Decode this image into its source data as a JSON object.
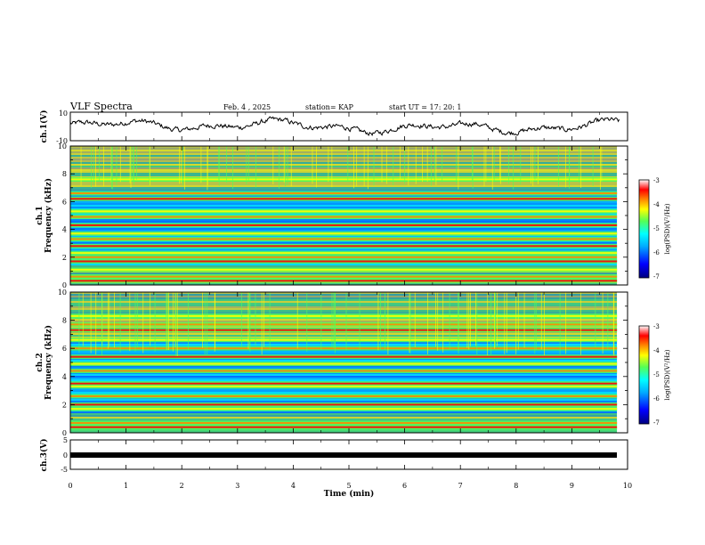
{
  "header": {
    "title": "VLF Spectra",
    "date": "Feb. 4 , 2025",
    "station": "station= KAP",
    "start": "start  UT =   17: 20: 1"
  },
  "chart_data": [
    {
      "type": "line",
      "name": "ch1-waveform",
      "ylabel": "ch.1(V)",
      "ylim": [
        -10,
        10
      ],
      "yticks": [
        "10",
        "-10"
      ],
      "xlim": [
        0,
        10
      ],
      "data_extent_min": 9.85,
      "note_shape": "noisy waveform oscillating between about -6 and 8 V"
    },
    {
      "type": "heatmap",
      "name": "ch1-spectrogram",
      "ylabel_line1": "ch.1",
      "ylabel_line2": "Frequency (kHz)",
      "ylim": [
        0,
        10
      ],
      "yticks": [
        "0",
        "2",
        "4",
        "6",
        "8",
        "10"
      ],
      "xlim": [
        0,
        10
      ],
      "colorbar": {
        "label": "log(PSD)(V²/Hz)",
        "range": [
          -7,
          -3
        ],
        "ticks": [
          "-3",
          "-4",
          "-5",
          "-6",
          "-7"
        ]
      },
      "bands_khz": [
        0.3,
        0.6,
        1.1,
        1.7,
        2.0,
        2.3,
        2.8,
        3.3,
        3.7,
        4.3,
        4.9,
        5.3,
        6.2,
        6.6,
        7.6
      ]
    },
    {
      "type": "heatmap",
      "name": "ch2-spectrogram",
      "ylabel_line1": "ch.2",
      "ylabel_line2": "Frequency (kHz)",
      "ylim": [
        0,
        10
      ],
      "yticks": [
        "0",
        "2",
        "4",
        "6",
        "8",
        "10"
      ],
      "xlim": [
        0,
        10
      ],
      "colorbar": {
        "label": "log(PSD)(V²/Hz)",
        "range": [
          -7,
          -3
        ],
        "ticks": [
          "-3",
          "-4",
          "-5",
          "-6",
          "-7"
        ]
      },
      "bands_khz": [
        0.4,
        0.7,
        1.7,
        2.0,
        2.6,
        3.3,
        3.5,
        4.4,
        4.9,
        5.4,
        6.0,
        6.6,
        7.3,
        7.7,
        8.3
      ]
    },
    {
      "type": "line",
      "name": "ch3-level",
      "ylabel": "ch.3(V)",
      "ylim": [
        -5,
        5
      ],
      "yticks": [
        "5",
        "0",
        "-5"
      ],
      "xlim": [
        0,
        10
      ],
      "constant_value": 0
    }
  ],
  "xaxis": {
    "label": "Time  (min)",
    "ticks": [
      "0",
      "1",
      "2",
      "3",
      "4",
      "5",
      "6",
      "7",
      "8",
      "9",
      "10"
    ]
  },
  "colors": {
    "frame": "#000000",
    "background": "#ffffff",
    "colormap": [
      "#000080",
      "#0000ff",
      "#00aaff",
      "#00ffff",
      "#55ff55",
      "#ffff00",
      "#ff8800",
      "#ff0000",
      "#ffffff"
    ]
  }
}
